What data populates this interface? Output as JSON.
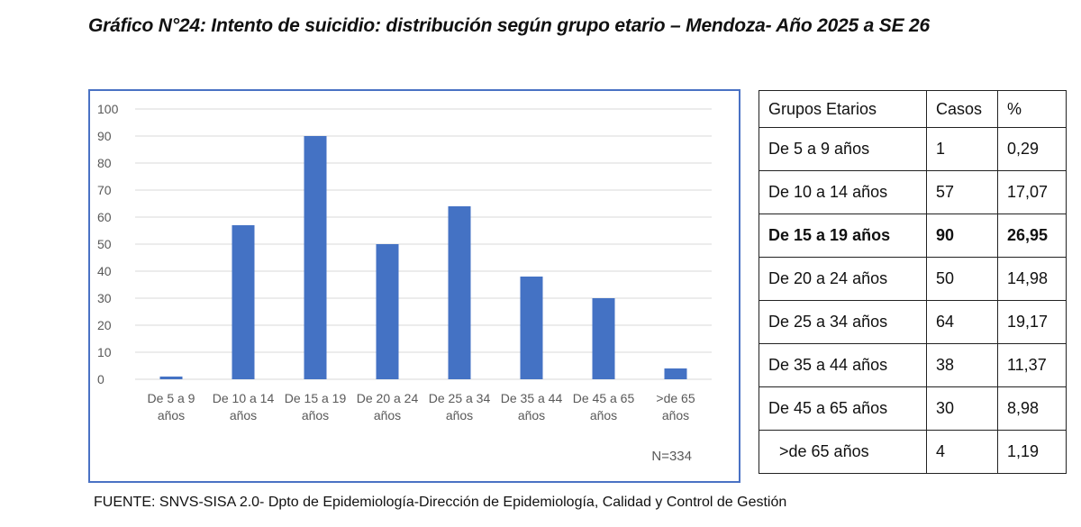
{
  "title": "Gráfico N°24: Intento de suicidio: distribución según grupo etario – Mendoza- Año 2025 a SE 26",
  "source": "FUENTE: SNVS-SISA 2.0- Dpto de Epidemiología-Dirección de Epidemiología, Calidad y Control de Gestión",
  "chart_data": {
    "type": "bar",
    "categories": [
      [
        "De 5 a 9",
        "años"
      ],
      [
        "De 10 a 14",
        "años"
      ],
      [
        "De 15 a 19",
        "años"
      ],
      [
        "De 20 a 24",
        "años"
      ],
      [
        "De 25 a 34",
        "años"
      ],
      [
        "De 35 a 44",
        "años"
      ],
      [
        "De 45 a 65",
        "años"
      ],
      [
        ">de 65",
        "años"
      ]
    ],
    "values": [
      1,
      57,
      90,
      50,
      64,
      38,
      30,
      4
    ],
    "ylim": [
      0,
      100
    ],
    "yticks": [
      0,
      10,
      20,
      30,
      40,
      50,
      60,
      70,
      80,
      90,
      100
    ],
    "grid": true,
    "bar_color": "#4472c4",
    "annotation": "N=334"
  },
  "table": {
    "headers": [
      "Grupos Etarios",
      "Casos",
      "%"
    ],
    "rows": [
      [
        "De 5 a 9 años",
        "1",
        "0,29"
      ],
      [
        "De 10 a 14 años",
        "57",
        "17,07"
      ],
      [
        "De 15 a 19 años",
        "90",
        "26,95"
      ],
      [
        "De 20 a 24 años",
        "50",
        "14,98"
      ],
      [
        "De 25 a 34 años",
        "64",
        "19,17"
      ],
      [
        "De 35 a 44 años",
        "38",
        "11,37"
      ],
      [
        "De 45 a 65 años",
        "30",
        "8,98"
      ],
      [
        " >de 65 años",
        "4",
        "1,19"
      ]
    ],
    "bold_row": 2
  }
}
